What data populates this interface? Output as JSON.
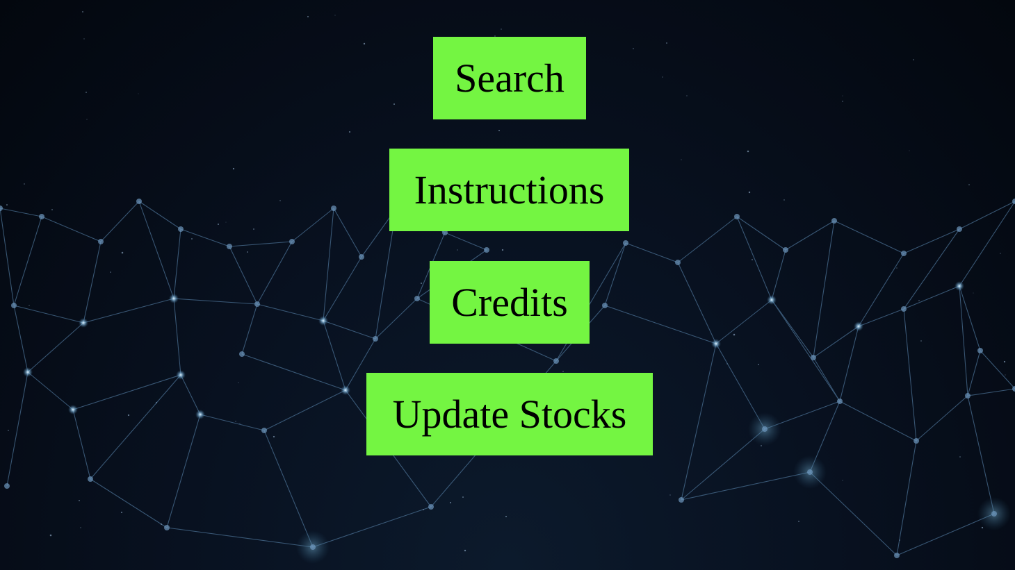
{
  "menu": {
    "search_label": "Search",
    "instructions_label": "Instructions",
    "credits_label": "Credits",
    "update_stocks_label": "Update Stocks"
  },
  "colors": {
    "button_background": "#74f542",
    "button_text": "#000000",
    "background_dark": "#050a14",
    "network_line": "#4a6f92",
    "network_node": "#bfe3ff"
  },
  "background": {
    "icon": "network-mesh-background"
  }
}
